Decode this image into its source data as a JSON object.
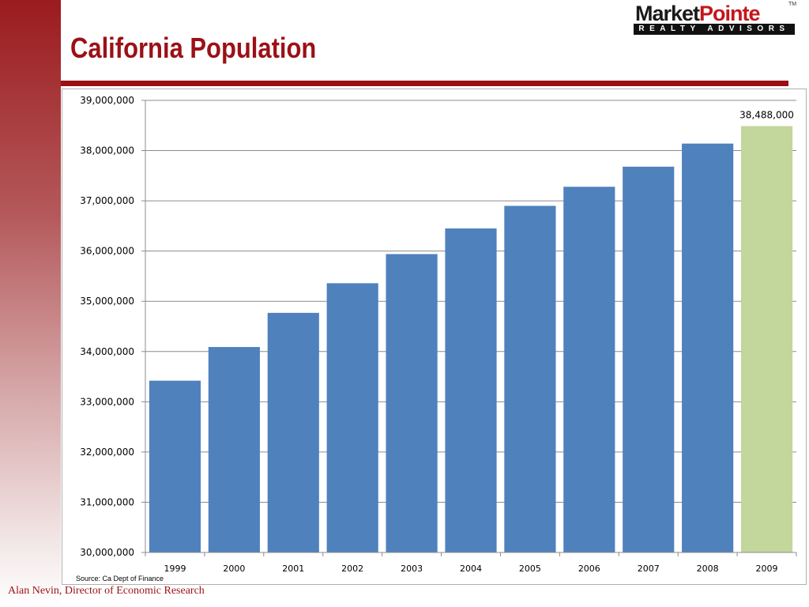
{
  "slide": {
    "title": "California Population",
    "source": "Source: Ca Dept of Finance",
    "footer": "Alan Nevin, Director of Economic Research"
  },
  "logo": {
    "part1": "Market",
    "part2": "Pointe",
    "tagline": "REALTY ADVISORS",
    "tm": "TM"
  },
  "colors": {
    "bar": "#4f81bd",
    "highlight_bar": "#c3d69b",
    "title": "#9b1116",
    "rule": "#9b0f14"
  },
  "chart_data": {
    "type": "bar",
    "categories": [
      "1999",
      "2000",
      "2001",
      "2002",
      "2003",
      "2004",
      "2005",
      "2006",
      "2007",
      "2008",
      "2009"
    ],
    "values": [
      33420000,
      34090000,
      34770000,
      35360000,
      35940000,
      36450000,
      36900000,
      37280000,
      37680000,
      38140000,
      38488000
    ],
    "highlight_index": 10,
    "data_labels": {
      "10": "38,488,000"
    },
    "ylim": [
      30000000,
      39000000
    ],
    "yticks": [
      30000000,
      31000000,
      32000000,
      33000000,
      34000000,
      35000000,
      36000000,
      37000000,
      38000000,
      39000000
    ],
    "ytick_labels": [
      "30,000,000",
      "31,000,000",
      "32,000,000",
      "33,000,000",
      "34,000,000",
      "35,000,000",
      "36,000,000",
      "37,000,000",
      "38,000,000",
      "39,000,000"
    ],
    "grid": true,
    "title": "",
    "xlabel": "",
    "ylabel": ""
  }
}
